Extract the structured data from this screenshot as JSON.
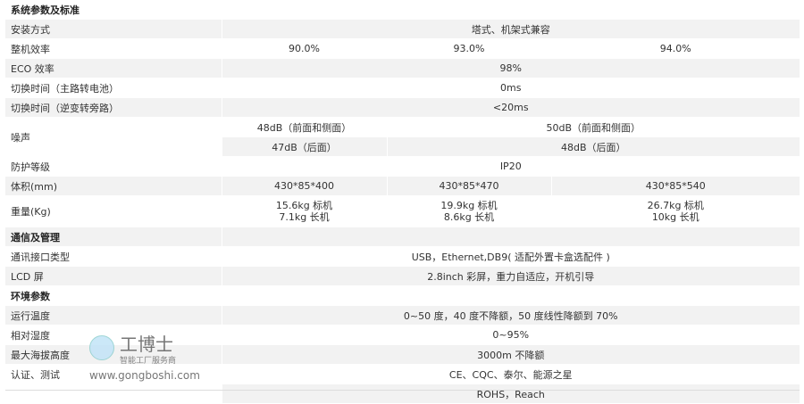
{
  "sections": {
    "system": "系统参数及标准",
    "comm": "通信及管理",
    "env": "环境参数"
  },
  "rows": {
    "install": {
      "label": "安装方式",
      "value": "塔式、机架式兼容"
    },
    "efficiency": {
      "label": "整机效率",
      "values": [
        "90.0%",
        "93.0%",
        "94.0%"
      ]
    },
    "eco": {
      "label": "ECO 效率",
      "value": "98%"
    },
    "switch1": {
      "label": "切换时间（主路转电池）",
      "value": "0ms"
    },
    "switch2": {
      "label": "切换时间（逆变转旁路）",
      "value": "<20ms"
    },
    "noise": {
      "label": "噪声",
      "front": [
        "48dB（前面和侧面）",
        "50dB（前面和侧面）"
      ],
      "rear": [
        "47dB（后面）",
        "48dB（后面）"
      ]
    },
    "protection": {
      "label": "防护等级",
      "value": "IP20"
    },
    "volume": {
      "label": "体积(mm)",
      "values": [
        "430*85*400",
        "430*85*470",
        "430*85*540"
      ]
    },
    "weight": {
      "label": "重量(Kg)",
      "values": [
        [
          "15.6kg 标机",
          "7.1kg 长机"
        ],
        [
          "19.9kg 标机",
          "8.6kg 长机"
        ],
        [
          "26.7kg 标机",
          "10kg 长机"
        ]
      ]
    },
    "interface": {
      "label": "通讯接口类型",
      "value": "USB，Ethernet,DB9( 适配外置卡盒选配件 )"
    },
    "lcd": {
      "label": "LCD 屏",
      "value": "2.8inch 彩屏，重力自适应，开机引导"
    },
    "temp": {
      "label": "运行温度",
      "value": "0~50 度，40 度不降额，50 度线性降额到 70%"
    },
    "humidity": {
      "label": "相对湿度",
      "value": "0~95%"
    },
    "altitude": {
      "label": "最大海拔高度",
      "value": "3000m 不降额"
    },
    "cert": {
      "label": "认证、测试",
      "value": "CE、CQC、泰尔、能源之星"
    },
    "rohs": {
      "label": "",
      "value": "ROHS，Reach"
    }
  },
  "watermark": {
    "brand": "工博士",
    "slogan": "智能工厂服务商",
    "site": "www.gongboshi.com"
  }
}
